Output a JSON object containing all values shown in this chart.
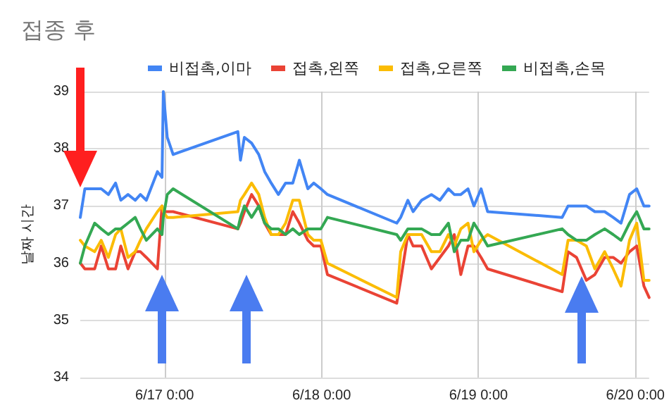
{
  "chart_data": {
    "type": "line",
    "title": "접종 후",
    "ylabel": "날짜 시간",
    "x": [
      "--06-16T11:06",
      "--06-16T11:48",
      "--06-16T13:18",
      "--06-16T14:18",
      "--06-16T15:24",
      "--06-16T16:30",
      "--06-16T17:18",
      "--06-16T18:24",
      "--06-16T19:30",
      "--06-16T20:18",
      "--06-16T21:12",
      "--06-16T22:54",
      "--06-16T23:36",
      "--06-16T23:48",
      "--06-17T00:24",
      "--06-17T01:18",
      "--06-17T11:12",
      "--06-17T11:36",
      "--06-17T12:12",
      "--06-17T13:18",
      "--06-17T14:24",
      "--06-17T15:18",
      "--06-17T16:18",
      "--06-17T17:24",
      "--06-17T18:30",
      "--06-17T19:36",
      "--06-17T20:36",
      "--06-17T21:54",
      "--06-17T22:48",
      "--06-17T23:54",
      "--06-18T00:54",
      "--06-18T11:30",
      "--06-18T12:06",
      "--06-18T13:12",
      "--06-18T14:00",
      "--06-18T15:18",
      "--06-18T16:48",
      "--06-18T18:06",
      "--06-18T19:24",
      "--06-18T20:18",
      "--06-18T21:18",
      "--06-18T22:24",
      "--06-18T23:18",
      "--06-19T00:24",
      "--06-19T01:24",
      "--06-19T12:48",
      "--06-19T13:42",
      "--06-19T15:00",
      "--06-19T16:30",
      "--06-19T17:48",
      "--06-19T19:18",
      "--06-19T20:36",
      "--06-19T21:48",
      "--06-19T23:06",
      "--06-20T00:12",
      "--06-20T01:18",
      "--06-20T02:06"
    ],
    "series": [
      {
        "name": "비접촉,이마",
        "color": "#4285f4",
        "values": [
          36.8,
          37.3,
          37.3,
          37.3,
          37.2,
          37.4,
          37.1,
          37.2,
          37.1,
          37.2,
          37.1,
          37.6,
          37.5,
          39.0,
          38.2,
          37.9,
          38.3,
          37.8,
          38.2,
          38.1,
          37.9,
          37.6,
          37.4,
          37.2,
          37.4,
          37.4,
          37.8,
          37.3,
          37.4,
          37.3,
          37.2,
          36.7,
          36.8,
          37.1,
          36.9,
          37.1,
          37.2,
          37.1,
          37.3,
          37.2,
          37.2,
          37.3,
          37.0,
          37.3,
          36.9,
          36.8,
          37.0,
          37.0,
          37.0,
          36.9,
          36.9,
          36.8,
          36.7,
          37.2,
          37.3,
          37.0,
          37.0
        ]
      },
      {
        "name": "접촉,왼쪽",
        "color": "#ea4335",
        "values": [
          36.0,
          35.9,
          35.9,
          36.3,
          35.9,
          35.9,
          36.3,
          35.9,
          36.2,
          36.2,
          36.1,
          35.9,
          37.0,
          36.9,
          36.9,
          36.9,
          36.6,
          36.7,
          36.9,
          37.2,
          37.0,
          36.7,
          36.5,
          36.5,
          36.5,
          36.9,
          36.7,
          36.4,
          36.3,
          36.3,
          35.8,
          35.3,
          35.7,
          36.5,
          36.3,
          36.3,
          35.9,
          36.1,
          36.3,
          36.5,
          35.8,
          36.3,
          36.3,
          36.1,
          35.9,
          35.5,
          36.2,
          36.1,
          35.7,
          35.8,
          36.1,
          36.1,
          36.0,
          36.2,
          36.3,
          35.6,
          35.4
        ]
      },
      {
        "name": "접촉,오른쪽",
        "color": "#fbbc04",
        "values": [
          36.4,
          36.3,
          36.2,
          36.4,
          36.1,
          36.5,
          36.6,
          36.1,
          36.2,
          36.4,
          36.6,
          36.9,
          37.0,
          36.9,
          36.8,
          36.8,
          36.9,
          37.1,
          37.2,
          37.4,
          37.2,
          36.8,
          36.5,
          36.5,
          36.7,
          37.1,
          37.1,
          36.5,
          36.4,
          36.4,
          36.0,
          35.4,
          36.2,
          36.5,
          36.5,
          36.5,
          36.2,
          36.2,
          36.5,
          36.3,
          36.6,
          36.7,
          36.2,
          36.4,
          36.5,
          35.8,
          36.4,
          36.4,
          36.3,
          35.9,
          36.2,
          35.9,
          35.6,
          36.4,
          36.7,
          35.7,
          35.7
        ]
      },
      {
        "name": "비접촉,손목",
        "color": "#34a853",
        "values": [
          36.0,
          36.3,
          36.7,
          36.6,
          36.5,
          36.6,
          36.6,
          36.7,
          36.8,
          36.6,
          36.4,
          36.6,
          36.5,
          36.8,
          37.2,
          37.3,
          36.6,
          36.8,
          37.0,
          36.8,
          37.0,
          36.7,
          36.6,
          36.6,
          36.5,
          36.6,
          36.5,
          36.6,
          36.6,
          36.6,
          36.8,
          36.5,
          36.4,
          36.6,
          36.6,
          36.6,
          36.5,
          36.5,
          36.7,
          36.2,
          36.4,
          36.4,
          36.7,
          36.5,
          36.3,
          36.6,
          36.5,
          36.4,
          36.4,
          36.5,
          36.6,
          36.5,
          36.4,
          36.7,
          36.9,
          36.6,
          36.6
        ]
      }
    ],
    "xlim": [
      "--06-16T11:06",
      "--06-20T02:06"
    ],
    "xticks": [
      {
        "value": "--06-17T00:00",
        "label": "6/17 0:00"
      },
      {
        "value": "--06-18T00:00",
        "label": "6/18 0:00"
      },
      {
        "value": "--06-19T00:00",
        "label": "6/19 0:00"
      },
      {
        "value": "--06-20T00:00",
        "label": "6/20 0:00"
      }
    ],
    "ylim": [
      34,
      39
    ],
    "yticks": [
      34,
      35,
      36,
      37,
      38,
      39
    ],
    "grid": true,
    "legend": "top",
    "marker": "none",
    "line_style": "solid"
  }
}
